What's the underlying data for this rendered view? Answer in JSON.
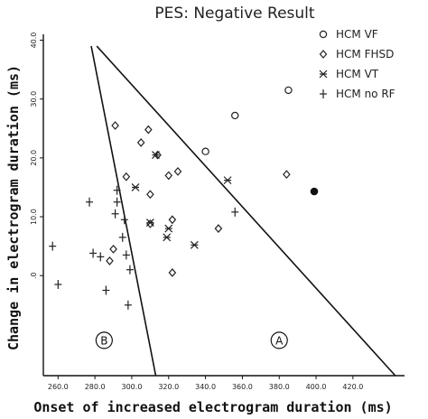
{
  "chart_data": {
    "type": "scatter",
    "title": "PES: Negative Result",
    "xlabel": "Onset of increased electrogram duration  (ms)",
    "ylabel": "Change in electrogram duration  (ms)",
    "xlim": [
      252,
      448
    ],
    "ylim": [
      -17,
      41
    ],
    "x_ticks": [
      {
        "value": 260,
        "label": "260.0"
      },
      {
        "value": 280,
        "label": "280.0"
      },
      {
        "value": 300,
        "label": "300.0"
      },
      {
        "value": 320,
        "label": "320.0"
      },
      {
        "value": 340,
        "label": "340.0"
      },
      {
        "value": 360,
        "label": "360.0"
      },
      {
        "value": 380,
        "label": "380.0"
      },
      {
        "value": 400,
        "label": "400.0"
      },
      {
        "value": 420,
        "label": "420.0"
      }
    ],
    "y_ticks": [
      {
        "value": 0,
        "label": ".0"
      },
      {
        "value": 10,
        "label": "10.0"
      },
      {
        "value": 20,
        "label": "20.0"
      },
      {
        "value": 30,
        "label": "30.0"
      },
      {
        "value": 40,
        "label": "40.0"
      }
    ],
    "legend": {
      "placement": "top-right"
    },
    "series": [
      {
        "name": "HCM  VF",
        "marker": "circle",
        "points": [
          {
            "x": 385,
            "y": 31.5
          },
          {
            "x": 356,
            "y": 27.2
          },
          {
            "x": 340,
            "y": 21.1
          }
        ]
      },
      {
        "name": "HCM  FHSD",
        "marker": "diamond",
        "points": [
          {
            "x": 291,
            "y": 25.5
          },
          {
            "x": 309,
            "y": 24.8
          },
          {
            "x": 305,
            "y": 22.6
          },
          {
            "x": 314,
            "y": 20.5
          },
          {
            "x": 325,
            "y": 17.7
          },
          {
            "x": 320,
            "y": 17.0
          },
          {
            "x": 297,
            "y": 16.8
          },
          {
            "x": 384,
            "y": 17.2
          },
          {
            "x": 310,
            "y": 13.8
          },
          {
            "x": 322,
            "y": 9.5
          },
          {
            "x": 310,
            "y": 8.8
          },
          {
            "x": 347,
            "y": 8.0
          },
          {
            "x": 290,
            "y": 4.5
          },
          {
            "x": 288,
            "y": 2.5
          },
          {
            "x": 322,
            "y": 0.5
          }
        ]
      },
      {
        "name": "HCM  VT",
        "marker": "x",
        "points": [
          {
            "x": 313,
            "y": 20.5
          },
          {
            "x": 352,
            "y": 16.2
          },
          {
            "x": 302,
            "y": 15.0
          },
          {
            "x": 310,
            "y": 9.0
          },
          {
            "x": 320,
            "y": 8.0
          },
          {
            "x": 319,
            "y": 6.5
          },
          {
            "x": 334,
            "y": 5.2
          }
        ]
      },
      {
        "name": "HCM  no RF",
        "marker": "plus",
        "points": [
          {
            "x": 292,
            "y": 14.5
          },
          {
            "x": 277,
            "y": 12.5
          },
          {
            "x": 292,
            "y": 12.5
          },
          {
            "x": 291,
            "y": 10.5
          },
          {
            "x": 296,
            "y": 9.5
          },
          {
            "x": 356,
            "y": 10.8
          },
          {
            "x": 257,
            "y": 5.0
          },
          {
            "x": 295,
            "y": 6.5
          },
          {
            "x": 279,
            "y": 3.8
          },
          {
            "x": 283,
            "y": 3.2
          },
          {
            "x": 297,
            "y": 3.5
          },
          {
            "x": 299,
            "y": 1.0
          },
          {
            "x": 260,
            "y": -1.5
          },
          {
            "x": 286,
            "y": -2.5
          },
          {
            "x": 298,
            "y": -5.0
          }
        ]
      },
      {
        "marker": "filled-circle",
        "points": [
          {
            "x": 399,
            "y": 14.3
          }
        ]
      }
    ],
    "lines": [
      {
        "from": {
          "x": 278,
          "y": 39.0
        },
        "to": {
          "x": 313,
          "y": -17.0
        }
      },
      {
        "from": {
          "x": 281,
          "y": 39.0
        },
        "to": {
          "x": 443,
          "y": -17.0
        }
      }
    ],
    "regions": [
      {
        "label": "B",
        "x": 285,
        "y": -11
      },
      {
        "label": "A",
        "x": 380,
        "y": -11
      }
    ]
  }
}
